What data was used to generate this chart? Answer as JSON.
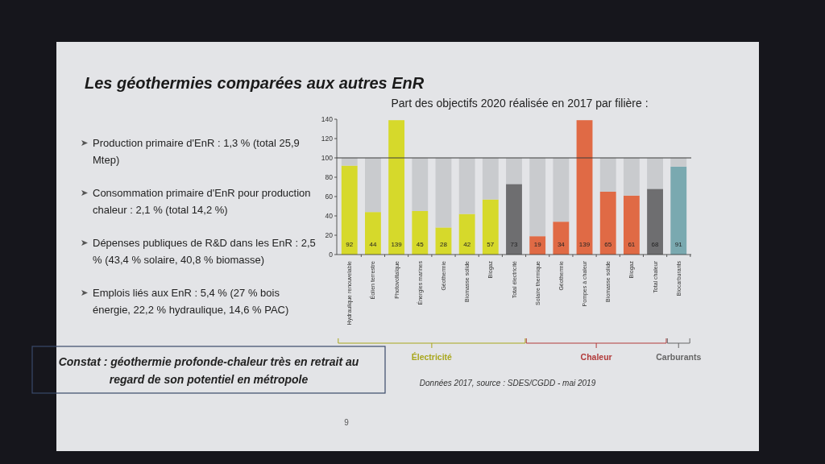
{
  "chart_data": [
    {
      "type": "other",
      "title": "Les géothermies comparées aux autres EnR",
      "annotations": [
        "Production primaire d'EnR : 1,3 % (total 25,9 Mtep)",
        "Consommation primaire d'EnR pour production chaleur : 2,1 % (total 14,2 %)",
        "Dépenses publiques de R&D dans les EnR : 2,5 % (43,4 % solaire, 40,8 % biomasse)",
        "Emplois liés aux EnR : 5,4 % (27 % bois énergie, 22,2 % hydraulique, 14,6 % PAC)",
        "Constat : géothermie profonde-chaleur très en retrait au regard de son potentiel en métropole",
        "9"
      ]
    },
    {
      "type": "bar",
      "title": "Part des objectifs 2020 réalisée en 2017 par filière :",
      "categories": [
        "Hydraulique renouvelable",
        "Éolien terrestre",
        "Photovoltaïque",
        "Énergies marines",
        "Géothermie",
        "Biomasse solide",
        "Biogaz",
        "Total électricité",
        "Solaire thermique",
        "Géothermie",
        "Pompes à chaleur",
        "Biomasse solide",
        "Biogaz",
        "Total chaleur",
        "Biocarburants"
      ],
      "series": [
        {
          "colors": [
            "#d6d92b",
            "#d6d92b",
            "#d6d92b",
            "#d6d92b",
            "#d6d92b",
            "#d6d92b",
            "#d6d92b",
            "#6e6e70",
            "#e06a45",
            "#e06a45",
            "#e06a45",
            "#e06a45",
            "#e06a45",
            "#6e6e70",
            "#7aa9b0"
          ],
          "values": [
            92,
            44,
            139,
            45,
            28,
            42,
            57,
            73,
            19,
            34,
            139,
            65,
            61,
            68,
            91
          ],
          "value_labels": [
            "92",
            "44",
            "139",
            "45",
            "28",
            "42",
            "57",
            "73",
            "19",
            "34",
            "139",
            "65",
            "61",
            "68",
            "91"
          ]
        },
        {
          "color": "#c9cbce",
          "values": [
            8,
            56,
            null,
            55,
            72,
            58,
            43,
            27,
            81,
            66,
            null,
            35,
            39,
            32,
            9
          ]
        }
      ],
      "stacked": true,
      "ylim": [
        0,
        140
      ],
      "yticks": [
        0,
        20,
        40,
        60,
        80,
        100,
        120,
        140
      ],
      "ref_lines": [
        {
          "axis": "y",
          "value": 100,
          "color": "#3a3a3a"
        }
      ],
      "annotations": [
        "Électricité",
        "Chaleur",
        "Carburants",
        "Données 2017, source : SDES/CGDD - mai 2019"
      ]
    }
  ]
}
